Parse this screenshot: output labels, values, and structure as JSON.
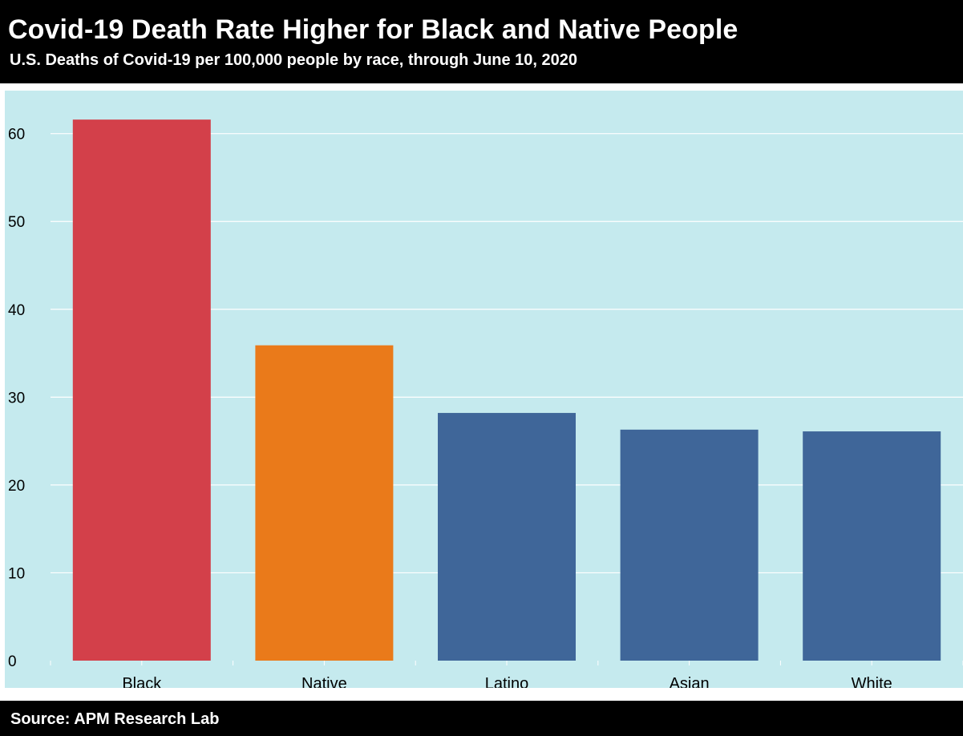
{
  "header": {
    "title": "Covid-19 Death Rate Higher for Black and Native People",
    "subtitle": "U.S. Deaths of Covid-19 per 100,000 people by race, through June 10, 2020"
  },
  "footer": {
    "source": "Source: APM Research Lab"
  },
  "colors": {
    "header_bg": "#000000",
    "plot_bg": "#c5eaee",
    "gridline": "#ffffff",
    "axis_text": "#000000",
    "bar_black": "#d3404a",
    "bar_native": "#ea7a1a",
    "bar_other": "#3f6699"
  },
  "chart_data": {
    "type": "bar",
    "title": "Covid-19 Death Rate Higher for Black and Native People",
    "subtitle": "U.S. Deaths of Covid-19 per 100,000 people by race, through June 10, 2020",
    "xlabel": "",
    "ylabel": "",
    "categories": [
      "Black",
      "Native",
      "Latino",
      "Asian",
      "White"
    ],
    "values": [
      61.6,
      35.9,
      28.2,
      26.3,
      26.1
    ],
    "bar_colors": [
      "#d3404a",
      "#ea7a1a",
      "#3f6699",
      "#3f6699",
      "#3f6699"
    ],
    "ylim": [
      0,
      64.9
    ],
    "yticks": [
      0,
      10,
      20,
      30,
      40,
      50,
      60
    ],
    "grid": true,
    "legend": "none"
  }
}
